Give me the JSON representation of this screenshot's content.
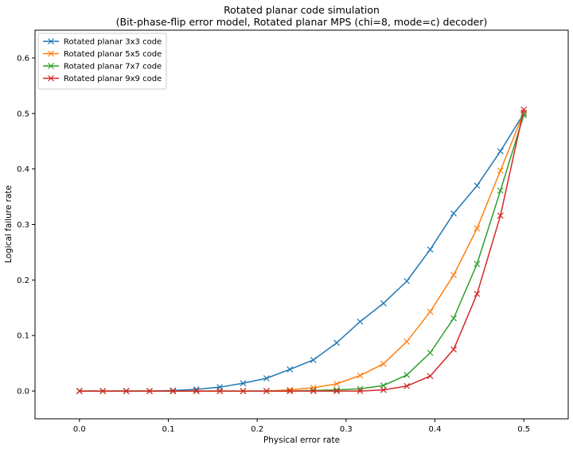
{
  "chart_data": {
    "type": "line",
    "title": "Rotated planar code simulation",
    "subtitle": "(Bit-phase-flip error model, Rotated planar MPS (chi=8, mode=c) decoder)",
    "xlabel": "Physical error rate",
    "ylabel": "Logical failure rate",
    "xlim": [
      -0.05,
      0.55
    ],
    "ylim": [
      -0.05,
      0.65
    ],
    "xticks": [
      0.0,
      0.1,
      0.2,
      0.3,
      0.4,
      0.5
    ],
    "xtick_labels": [
      "0.0",
      "0.1",
      "0.2",
      "0.3",
      "0.4",
      "0.5"
    ],
    "yticks": [
      0.0,
      0.1,
      0.2,
      0.3,
      0.4,
      0.5,
      0.6
    ],
    "ytick_labels": [
      "0.0",
      "0.1",
      "0.2",
      "0.3",
      "0.4",
      "0.5",
      "0.6"
    ],
    "grid": false,
    "legend_position": "top-left",
    "marker": "x",
    "x": [
      0.0,
      0.0263,
      0.0526,
      0.0789,
      0.1053,
      0.1316,
      0.1579,
      0.1842,
      0.2105,
      0.2368,
      0.2632,
      0.2895,
      0.3158,
      0.3421,
      0.3684,
      0.3947,
      0.4211,
      0.4474,
      0.4737,
      0.5
    ],
    "series": [
      {
        "name": "Rotated planar 3x3 code",
        "color": "#1f77b4",
        "values": [
          0.0,
          0.0,
          0.0,
          0.0,
          0.001,
          0.003,
          0.007,
          0.014,
          0.023,
          0.039,
          0.056,
          0.087,
          0.125,
          0.158,
          0.198,
          0.255,
          0.32,
          0.37,
          0.432,
          0.5
        ]
      },
      {
        "name": "Rotated planar 5x5 code",
        "color": "#ff7f0e",
        "values": [
          0.0,
          0.0,
          0.0,
          0.0,
          0.0,
          0.0,
          0.0,
          0.0,
          0.0,
          0.002,
          0.006,
          0.013,
          0.028,
          0.049,
          0.089,
          0.143,
          0.209,
          0.293,
          0.397,
          0.502
        ]
      },
      {
        "name": "Rotated planar 7x7 code",
        "color": "#2ca02c",
        "values": [
          0.0,
          0.0,
          0.0,
          0.0,
          0.0,
          0.0,
          0.0,
          0.0,
          0.0,
          0.0,
          0.001,
          0.002,
          0.004,
          0.01,
          0.029,
          0.069,
          0.131,
          0.229,
          0.361,
          0.497
        ]
      },
      {
        "name": "Rotated planar 9x9 code",
        "color": "#d62728",
        "values": [
          0.0,
          0.0,
          0.0,
          0.0,
          0.0,
          0.0,
          0.0,
          0.0,
          0.0,
          0.0,
          0.0,
          0.0,
          0.0,
          0.002,
          0.009,
          0.027,
          0.075,
          0.175,
          0.316,
          0.507
        ]
      }
    ]
  }
}
